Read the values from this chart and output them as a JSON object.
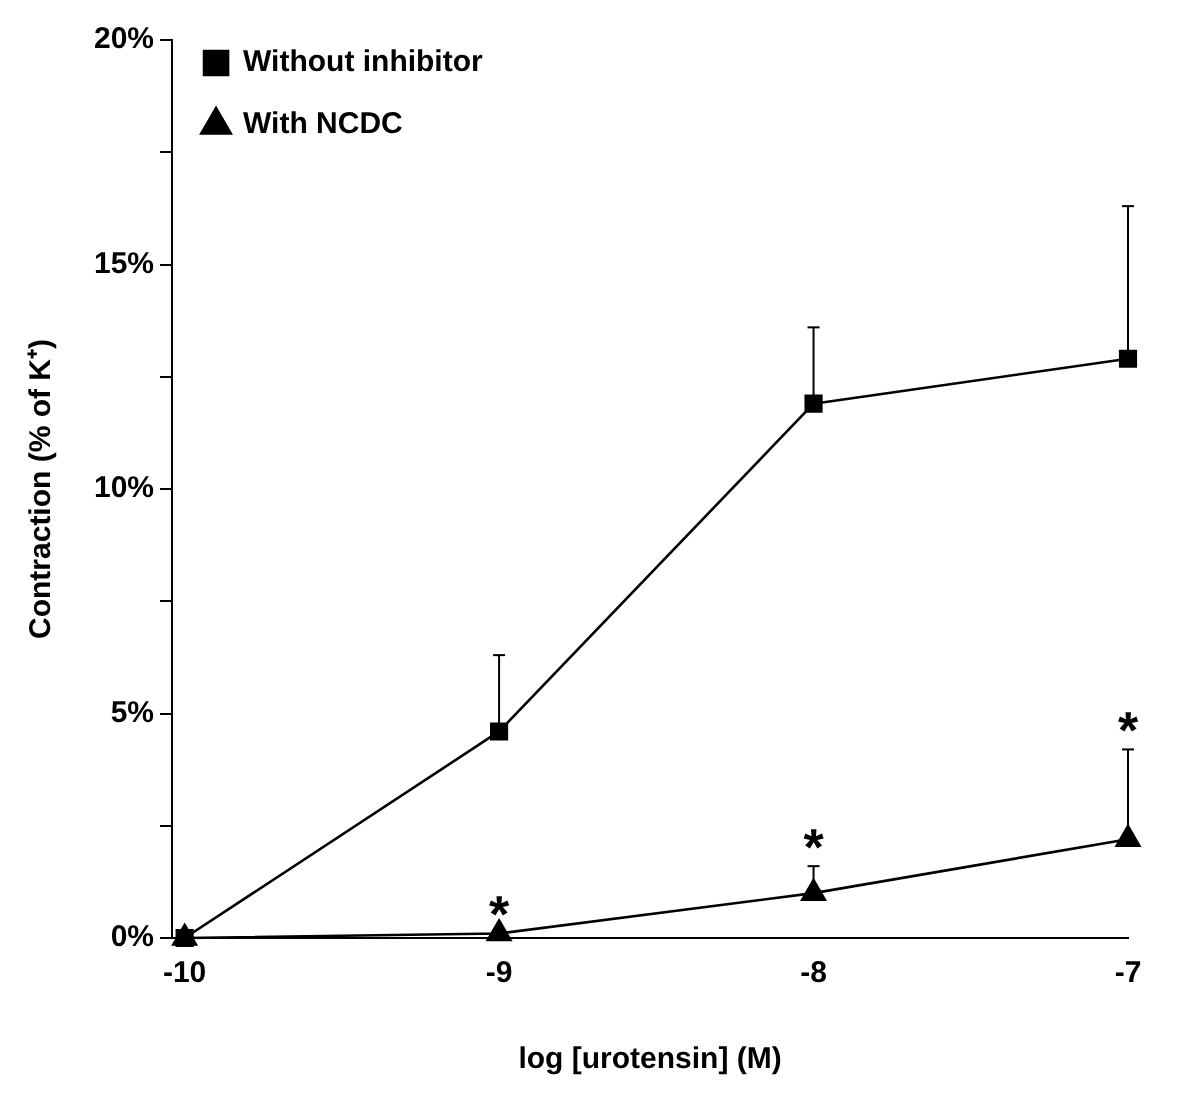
{
  "chart_data": {
    "type": "line",
    "xlabel": "log [urotensin] (M)",
    "ylabel": "Contraction (% of K⁺)",
    "x": [
      -10,
      -9,
      -8,
      -7
    ],
    "series": [
      {
        "name": "Without inhibitor",
        "color": "#000000",
        "marker": "square",
        "values": [
          0,
          4.6,
          11.9,
          12.9
        ],
        "errors": [
          null,
          [
            4.6,
            6.3
          ],
          [
            11.9,
            13.6
          ],
          [
            12.9,
            16.3
          ]
        ]
      },
      {
        "name": "With NCDC",
        "color": "#000000",
        "marker": "triangle",
        "values": [
          0,
          0.1,
          1.0,
          2.2
        ],
        "errors": [
          null,
          null,
          [
            1.0,
            1.6
          ],
          [
            2.2,
            4.2
          ]
        ]
      }
    ],
    "xlim": [
      -10.04,
      -7
    ],
    "xticks": [
      -10,
      -9,
      -8,
      -7
    ],
    "ylim": [
      0,
      20
    ],
    "yticks": [
      {
        "value": 0,
        "label": "0%"
      },
      {
        "value": 2.5,
        "label": null
      },
      {
        "value": 5,
        "label": "5%"
      },
      {
        "value": 7.5,
        "label": null
      },
      {
        "value": 10,
        "label": "10%"
      },
      {
        "value": 12.5,
        "label": null
      },
      {
        "value": 15,
        "label": "15%"
      },
      {
        "value": 17.5,
        "label": null
      },
      {
        "value": 20,
        "label": "20%"
      }
    ],
    "annotations": [
      {
        "text": "*",
        "x": -9,
        "y": 0.1
      },
      {
        "text": "*",
        "x": -8,
        "y": 1.6
      },
      {
        "text": "*",
        "x": -7,
        "y": 4.2
      }
    ],
    "legend": "top left",
    "grid": false,
    "line_style": "solid"
  }
}
